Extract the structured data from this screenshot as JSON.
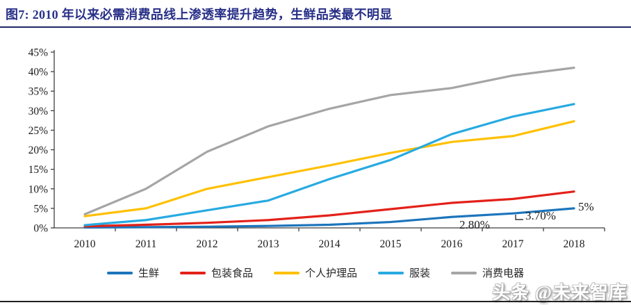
{
  "figure": {
    "title": "图7:  2010 年以来必需消费品线上渗透率提升趋势，生鲜品类最不明显",
    "watermark": "头条 @未来智库",
    "annotations": [
      {
        "text": "2.80%",
        "series": "生鲜",
        "year": 2016,
        "value": 2.8
      },
      {
        "text": "3.70%",
        "series": "生鲜",
        "year": 2017,
        "value": 3.7
      },
      {
        "text": "5%",
        "series": "生鲜",
        "year": 2018,
        "value": 5.0
      }
    ],
    "colors": {
      "title": "#272F87",
      "divider": "#20276B",
      "axis": "#3f3f3f",
      "tick_label": "#1a1a1a"
    }
  },
  "chart_data": {
    "type": "line",
    "title": "",
    "xlabel": "",
    "ylabel": "",
    "categories": [
      "2010",
      "2011",
      "2012",
      "2013",
      "2014",
      "2015",
      "2016",
      "2017",
      "2018"
    ],
    "ylim": [
      0,
      45
    ],
    "ytick_step": 5,
    "ytick_labels": [
      "0%",
      "5%",
      "10%",
      "15%",
      "20%",
      "25%",
      "30%",
      "35%",
      "40%",
      "45%"
    ],
    "grid": false,
    "legend_position": "bottom",
    "series": [
      {
        "name": "生鲜",
        "color": "#1C75BC",
        "values": [
          0.1,
          0.2,
          0.3,
          0.5,
          0.8,
          1.5,
          2.8,
          3.7,
          5.0
        ]
      },
      {
        "name": "包装食品",
        "color": "#E32119",
        "values": [
          0.4,
          0.8,
          1.3,
          2.0,
          3.2,
          4.8,
          6.4,
          7.4,
          9.3
        ]
      },
      {
        "name": "个人护理品",
        "color": "#FFC000",
        "values": [
          3.0,
          5.0,
          10.0,
          13.0,
          16.0,
          19.2,
          22.0,
          23.5,
          27.3
        ]
      },
      {
        "name": "服装",
        "color": "#27AAE1",
        "values": [
          0.7,
          2.0,
          4.5,
          7.0,
          12.5,
          17.4,
          24.0,
          28.5,
          31.7
        ]
      },
      {
        "name": "消费电器",
        "color": "#A5A5A5",
        "values": [
          3.5,
          10.0,
          19.5,
          26.0,
          30.5,
          34.0,
          35.8,
          39.0,
          41.0
        ]
      }
    ]
  }
}
